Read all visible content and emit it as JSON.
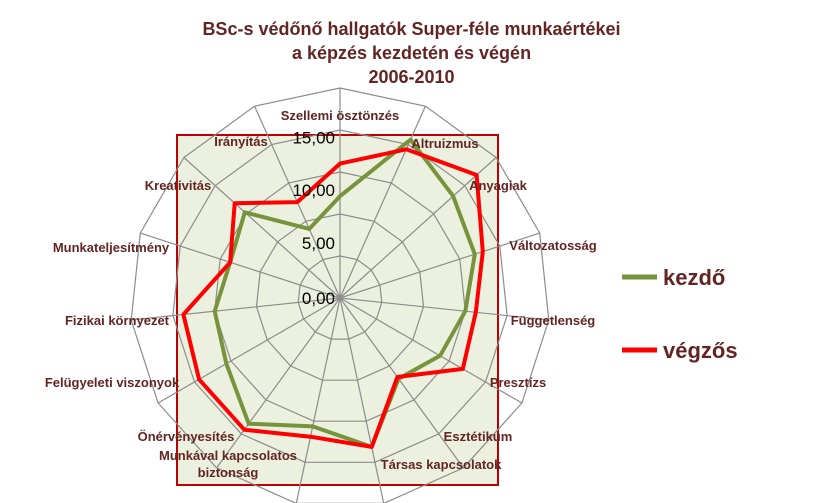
{
  "chart_data": {
    "type": "radar",
    "title_lines": [
      "BSc-s védőnő hallgatók Super-féle munkaértékei",
      "a képzés kezdetén és végén",
      "2006-2010"
    ],
    "categories": [
      "Szellemi ösztönzés",
      "Altruizmus",
      "Anyagiak",
      "Változatosság",
      "Függetlenség",
      "Presztízs",
      "Esztétikum",
      "Társas kapcsolatok",
      [
        "Munkával kapcsolatos",
        "biztonság"
      ],
      "Önérvényesítés",
      "Felügyeleti viszonyok",
      "Fizikai környezet",
      "Munkateljesítmény",
      "Kreativitás",
      "Irányítás"
    ],
    "radial_ticks": [
      "0,00",
      "5,00",
      "10,00",
      "15,00"
    ],
    "range": [
      0,
      20
    ],
    "grid": true,
    "plot_background": "#ebf1de",
    "plot_border": "#c00000",
    "legend_position": "right",
    "series": [
      {
        "name": "kezdő",
        "color": "#77933c",
        "values": [
          9.7,
          16.5,
          14.5,
          13.5,
          12.0,
          11.0,
          9.5,
          14.5,
          12.5,
          14.8,
          12.5,
          12.0,
          11.0,
          12.2,
          7.2
        ]
      },
      {
        "name": "végzős",
        "color": "#ff0000",
        "values": [
          12.8,
          15.5,
          17.5,
          14.3,
          13.0,
          13.5,
          9.3,
          14.5,
          13.5,
          15.5,
          15.5,
          15.0,
          11.0,
          13.5,
          10.0
        ]
      }
    ]
  }
}
